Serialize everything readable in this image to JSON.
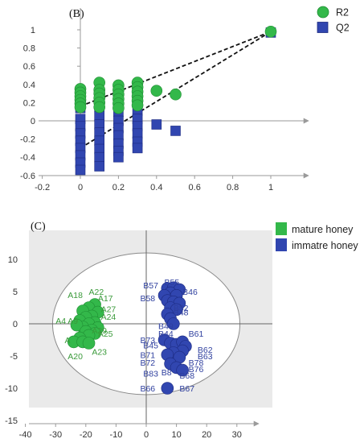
{
  "colors": {
    "green": "#33b84a",
    "green_edge": "#1f8d33",
    "blue": "#3146b0",
    "blue_edge": "#1c2a80",
    "axis": "#9a9a9a",
    "panel_bg": "#eaeaea"
  },
  "chart_data": [
    {
      "type": "scatter",
      "panel_label": "(B)",
      "xlim": [
        -0.2,
        1.1
      ],
      "ylim": [
        -0.6,
        1.1
      ],
      "x_ticks": [
        "-0.2",
        "0",
        "0.2",
        "0.4",
        "0.6",
        "0.8",
        "1"
      ],
      "y_ticks": [
        "1",
        "0.8",
        "0.6",
        "0.4",
        "0.2",
        "0",
        "-0.2",
        "-0.4",
        "-0.6"
      ],
      "legend_position": "top-right",
      "series": [
        {
          "name": "R2",
          "marker": "circle",
          "points": [
            [
              0,
              0.35
            ],
            [
              0,
              0.31
            ],
            [
              0,
              0.27
            ],
            [
              0,
              0.23
            ],
            [
              0,
              0.19
            ],
            [
              0,
              0.15
            ],
            [
              0.1,
              0.42
            ],
            [
              0.1,
              0.34
            ],
            [
              0.1,
              0.3
            ],
            [
              0.1,
              0.25
            ],
            [
              0.1,
              0.2
            ],
            [
              0.1,
              0.15
            ],
            [
              0.2,
              0.39
            ],
            [
              0.2,
              0.34
            ],
            [
              0.2,
              0.29
            ],
            [
              0.2,
              0.24
            ],
            [
              0.2,
              0.19
            ],
            [
              0.2,
              0.14
            ],
            [
              0.3,
              0.42
            ],
            [
              0.3,
              0.37
            ],
            [
              0.3,
              0.32
            ],
            [
              0.3,
              0.27
            ],
            [
              0.3,
              0.22
            ],
            [
              0.3,
              0.17
            ],
            [
              0.4,
              0.33
            ],
            [
              0.5,
              0.29
            ],
            [
              1,
              0.98
            ]
          ]
        },
        {
          "name": "Q2",
          "marker": "square",
          "points": [
            [
              0,
              0.14
            ],
            [
              0,
              0.02
            ],
            [
              0,
              -0.06
            ],
            [
              0,
              -0.14
            ],
            [
              0,
              -0.22
            ],
            [
              0,
              -0.3
            ],
            [
              0,
              -0.38
            ],
            [
              0,
              -0.46
            ],
            [
              0,
              -0.54
            ],
            [
              0.1,
              0.25
            ],
            [
              0.1,
              0.15
            ],
            [
              0.1,
              0.05
            ],
            [
              0.1,
              -0.04
            ],
            [
              0.1,
              -0.13
            ],
            [
              0.1,
              -0.22
            ],
            [
              0.1,
              -0.31
            ],
            [
              0.1,
              -0.4
            ],
            [
              0.1,
              -0.5
            ],
            [
              0.2,
              0.2
            ],
            [
              0.2,
              0.1
            ],
            [
              0.2,
              0
            ],
            [
              0.2,
              -0.08
            ],
            [
              0.2,
              -0.16
            ],
            [
              0.2,
              -0.25
            ],
            [
              0.2,
              -0.33
            ],
            [
              0.2,
              -0.4
            ],
            [
              0.3,
              0.22
            ],
            [
              0.3,
              0.11
            ],
            [
              0.3,
              0.02
            ],
            [
              0.3,
              -0.06
            ],
            [
              0.3,
              -0.14
            ],
            [
              0.3,
              -0.23
            ],
            [
              0.3,
              -0.3
            ],
            [
              0.4,
              -0.04
            ],
            [
              0.5,
              -0.11
            ],
            [
              1,
              0.97
            ]
          ]
        }
      ],
      "regression_lines": [
        {
          "from": [
            0,
            0.16
          ],
          "to": [
            1,
            0.98
          ],
          "style": "dashed"
        },
        {
          "from": [
            0,
            -0.3
          ],
          "to": [
            1,
            0.98
          ],
          "style": "dashed"
        }
      ]
    },
    {
      "type": "scatter",
      "panel_label": "(C)",
      "xlim": [
        -40,
        37
      ],
      "ylim": [
        -15,
        13
      ],
      "x_ticks": [
        "-40",
        "-30",
        "-20",
        "-10",
        "0",
        "10",
        "20",
        "30"
      ],
      "y_ticks": [
        "10",
        "5",
        "0",
        "-5",
        "-10",
        "-15"
      ],
      "legend_position": "top-right",
      "ellipse": {
        "center": [
          0,
          0
        ],
        "radius_x": 31,
        "radius_y": 11
      },
      "series": [
        {
          "name": "mature honey",
          "marker": "circle",
          "points": [
            [
              -17,
              3
            ],
            [
              -19,
              2.5
            ],
            [
              -21,
              2
            ],
            [
              -16,
              1.8
            ],
            [
              -18,
              1.2
            ],
            [
              -20,
              1
            ],
            [
              -22,
              0.5
            ],
            [
              -17,
              0.2
            ],
            [
              -19,
              0
            ],
            [
              -21,
              -0.5
            ],
            [
              -23,
              -0.2
            ],
            [
              -16,
              -0.6
            ],
            [
              -18,
              -1
            ],
            [
              -20,
              -1.2
            ],
            [
              -17,
              -1.5
            ],
            [
              -19,
              -1.8
            ],
            [
              -22,
              -2.2
            ],
            [
              -24,
              -2.8
            ],
            [
              -21,
              -2.8
            ],
            [
              -19,
              -3
            ]
          ],
          "labels": [
            {
              "text": "A18",
              "at": [
                -26,
                4
              ]
            },
            {
              "text": "A22",
              "at": [
                -19,
                4.5
              ]
            },
            {
              "text": "A17",
              "at": [
                -16,
                3.5
              ]
            },
            {
              "text": "A27",
              "at": [
                -15,
                1.8
              ]
            },
            {
              "text": "A24",
              "at": [
                -15,
                0.6
              ]
            },
            {
              "text": "A4",
              "at": [
                -30,
                0
              ]
            },
            {
              "text": "A9",
              "at": [
                -26,
                0
              ]
            },
            {
              "text": "A29",
              "at": [
                -18,
                -1.5
              ]
            },
            {
              "text": "A25",
              "at": [
                -16,
                -2
              ]
            },
            {
              "text": "A",
              "at": [
                -27,
                -3
              ]
            },
            {
              "text": "A20",
              "at": [
                -26,
                -5.5
              ]
            },
            {
              "text": "A23",
              "at": [
                -18,
                -4.8
              ]
            }
          ]
        },
        {
          "name": "immatre honey",
          "marker": "circle",
          "points": [
            [
              7,
              5.5
            ],
            [
              9,
              5.6
            ],
            [
              11,
              5.3
            ],
            [
              8,
              4.8
            ],
            [
              10,
              4.4
            ],
            [
              6,
              4.4
            ],
            [
              7,
              3.6
            ],
            [
              9,
              3.4
            ],
            [
              11,
              3.2
            ],
            [
              8,
              2.5
            ],
            [
              10,
              2.2
            ],
            [
              7,
              1.5
            ],
            [
              8,
              0.8
            ],
            [
              9,
              0
            ],
            [
              6,
              -2.5
            ],
            [
              8,
              -3
            ],
            [
              10,
              -3.2
            ],
            [
              12,
              -2.8
            ],
            [
              13,
              -3.5
            ],
            [
              12,
              -4.2
            ],
            [
              9,
              -4.5
            ],
            [
              7,
              -4.8
            ],
            [
              11,
              -5.2
            ],
            [
              8,
              -6.2
            ],
            [
              10,
              -6.8
            ],
            [
              12,
              -7.2
            ],
            [
              7,
              -10
            ]
          ],
          "labels": [
            {
              "text": "B57",
              "at": [
                -1,
                5.5
              ]
            },
            {
              "text": "B55",
              "at": [
                6,
                6
              ]
            },
            {
              "text": "B46",
              "at": [
                12,
                4.5
              ]
            },
            {
              "text": "B58",
              "at": [
                -2,
                3.5
              ]
            },
            {
              "text": "B52",
              "at": [
                9,
                2
              ]
            },
            {
              "text": "B48",
              "at": [
                9,
                1.3
              ]
            },
            {
              "text": "B49",
              "at": [
                4,
                -0.8
              ]
            },
            {
              "text": "B44",
              "at": [
                4,
                -2
              ]
            },
            {
              "text": "B61",
              "at": [
                14,
                -2
              ]
            },
            {
              "text": "B73",
              "at": [
                -2,
                -3
              ]
            },
            {
              "text": "B45",
              "at": [
                -1,
                -3.8
              ]
            },
            {
              "text": "B62",
              "at": [
                17,
                -4.5
              ]
            },
            {
              "text": "B63",
              "at": [
                17,
                -5.5
              ]
            },
            {
              "text": "B71",
              "at": [
                -2,
                -5.3
              ]
            },
            {
              "text": "B72",
              "at": [
                -2,
                -6.5
              ]
            },
            {
              "text": "B78",
              "at": [
                14,
                -6.5
              ]
            },
            {
              "text": "B76",
              "at": [
                14,
                -7.5
              ]
            },
            {
              "text": "B83",
              "at": [
                -1,
                -8.2
              ]
            },
            {
              "text": "B8",
              "at": [
                5,
                -8
              ]
            },
            {
              "text": "B68",
              "at": [
                11,
                -8.5
              ]
            },
            {
              "text": "B66",
              "at": [
                -2,
                -10.5
              ]
            },
            {
              "text": "B67",
              "at": [
                11,
                -10.5
              ]
            }
          ]
        }
      ]
    }
  ]
}
